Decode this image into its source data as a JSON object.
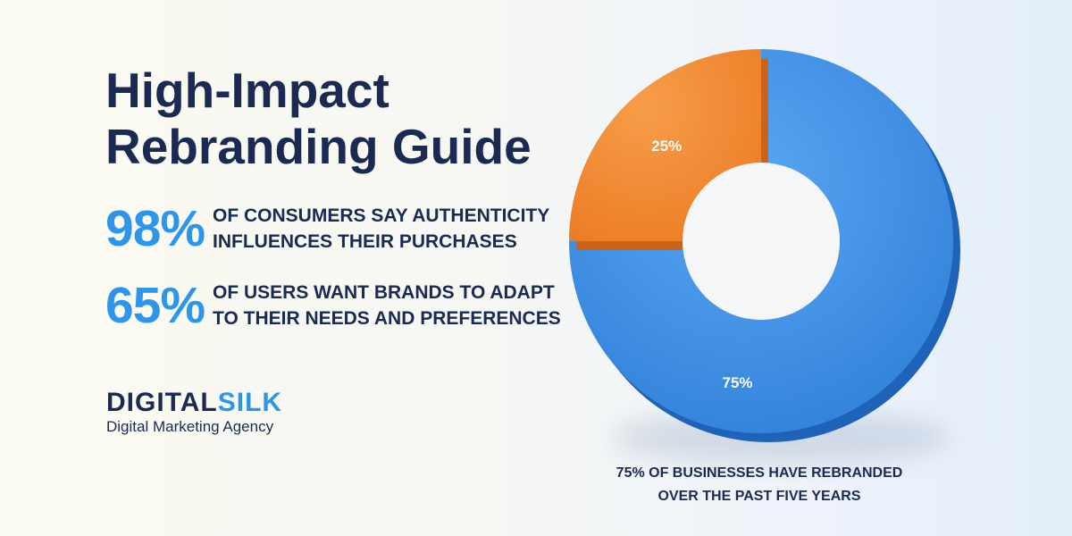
{
  "title": {
    "line1": "High-Impact",
    "line2": "Rebranding Guide"
  },
  "stats": [
    {
      "value": "98%",
      "line1": "OF CONSUMERS SAY AUTHENTICITY",
      "line2": "INFLUENCES THEIR PURCHASES"
    },
    {
      "value": "65%",
      "line1": "OF USERS WANT BRANDS TO ADAPT",
      "line2": "TO THEIR NEEDS AND PREFERENCES"
    }
  ],
  "logo": {
    "primary": "DIGITAL",
    "accent": "SILK",
    "tagline": "Digital Marketing Agency"
  },
  "colors": {
    "navy": "#1a2a52",
    "blue": "#3d8fe6",
    "orange": "#f28a33",
    "accent": "#2e96ea"
  },
  "chart_data": {
    "type": "pie",
    "categories": [
      "",
      ""
    ],
    "values": [
      75,
      25
    ],
    "labels": [
      "75%",
      "25%"
    ],
    "colors": [
      "#3d8fe6",
      "#f28a33"
    ],
    "caption_line1": "75% OF BUSINESSES HAVE REBRANDED",
    "caption_line2": "OVER THE PAST FIVE YEARS"
  }
}
